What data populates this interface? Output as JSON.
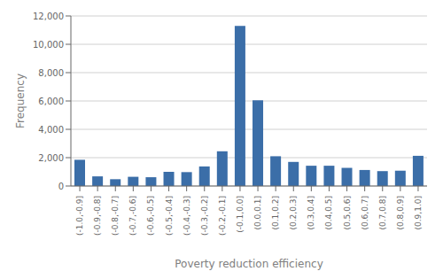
{
  "chart_data": {
    "type": "bar",
    "categories": [
      "(-1.0,-0.9]",
      "(-0.9,-0.8]",
      "(-0.8,-0.7]",
      "(-0.7,-0.6]",
      "(-0.6,-0.5]",
      "(-0.5,-0.4]",
      "(-0.4,-0.3]",
      "(-0.3,-0.2]",
      "(-0.2,-0.1]",
      "(-0.1,0.0]",
      "(0.0,0.1]",
      "(0.1,0.2]",
      "(0.2,0.3]",
      "(0.3,0.4]",
      "(0.4,0.5]",
      "(0.5,0.6]",
      "(0.6,0.7]",
      "(0.7,0.8]",
      "(0.8,0.9]",
      "(0.9,1.0]"
    ],
    "values": [
      1850,
      680,
      480,
      650,
      620,
      1000,
      980,
      1380,
      2450,
      11300,
      6050,
      2100,
      1700,
      1430,
      1430,
      1280,
      1130,
      1050,
      1080,
      2130
    ],
    "color": "#3B6EA8",
    "xlabel": "Poverty reduction efficiency",
    "ylabel": "Frequency",
    "ylim": [
      0,
      12000
    ],
    "yticks": [
      0,
      {
        "value": 2000,
        "label": "2,000"
      },
      {
        "value": 4000,
        "label": "4,000"
      },
      {
        "value": 6000,
        "label": "6,000"
      },
      {
        "value": 8000,
        "label": "8,000"
      },
      {
        "value": 10000,
        "label": "10,000"
      },
      {
        "value": 12000,
        "label": "12,000"
      }
    ],
    "grid": true
  }
}
